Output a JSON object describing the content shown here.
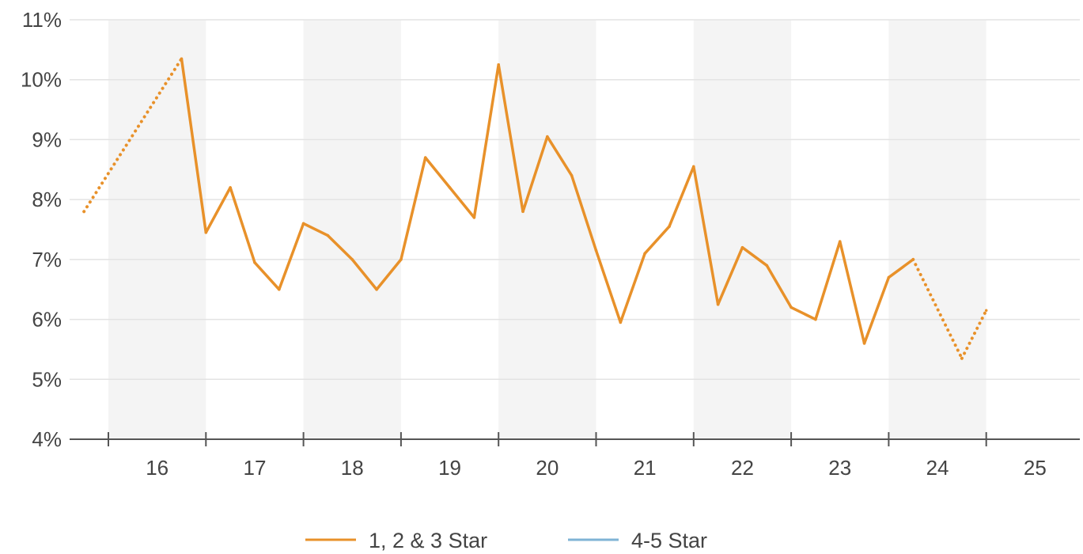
{
  "chart_data": {
    "type": "line",
    "x_tick_labels": [
      "16",
      "17",
      "18",
      "19",
      "20",
      "21",
      "22",
      "23",
      "24",
      "25"
    ],
    "y_tick_labels": [
      "4%",
      "5%",
      "6%",
      "7%",
      "8%",
      "9%",
      "10%",
      "11%"
    ],
    "ylim": [
      4,
      11
    ],
    "y_unit": "%",
    "grid": true,
    "alternating_year_bands": true,
    "legend_position": "bottom",
    "points_per_year": 4,
    "x_start": 15.75,
    "series": [
      {
        "name": "1, 2 & 3 Star",
        "color": "#E8912A",
        "dotted_segments": [
          [
            0,
            1
          ],
          [
            31,
            32
          ],
          [
            32,
            33
          ]
        ],
        "x": [
          15.75,
          16.75,
          17.0,
          17.25,
          17.5,
          17.75,
          18.0,
          18.25,
          18.5,
          18.75,
          19.0,
          19.25,
          19.5,
          19.75,
          20.0,
          20.25,
          20.5,
          20.75,
          21.0,
          21.25,
          21.5,
          21.75,
          22.0,
          22.25,
          22.5,
          22.75,
          23.0,
          23.25,
          23.5,
          23.75,
          24.0,
          24.25,
          24.75,
          25.0
        ],
        "values": [
          7.8,
          10.35,
          7.45,
          8.2,
          6.95,
          6.5,
          7.6,
          7.4,
          7.0,
          6.5,
          7.0,
          8.7,
          8.2,
          7.7,
          10.25,
          7.8,
          9.05,
          8.4,
          7.15,
          5.95,
          7.1,
          7.55,
          8.55,
          6.25,
          7.2,
          6.9,
          6.2,
          6.0,
          7.3,
          5.6,
          6.7,
          7.0,
          5.35,
          6.15
        ]
      },
      {
        "name": "4-5 Star",
        "color": "#7FB3D5",
        "x": [],
        "values": []
      }
    ]
  }
}
